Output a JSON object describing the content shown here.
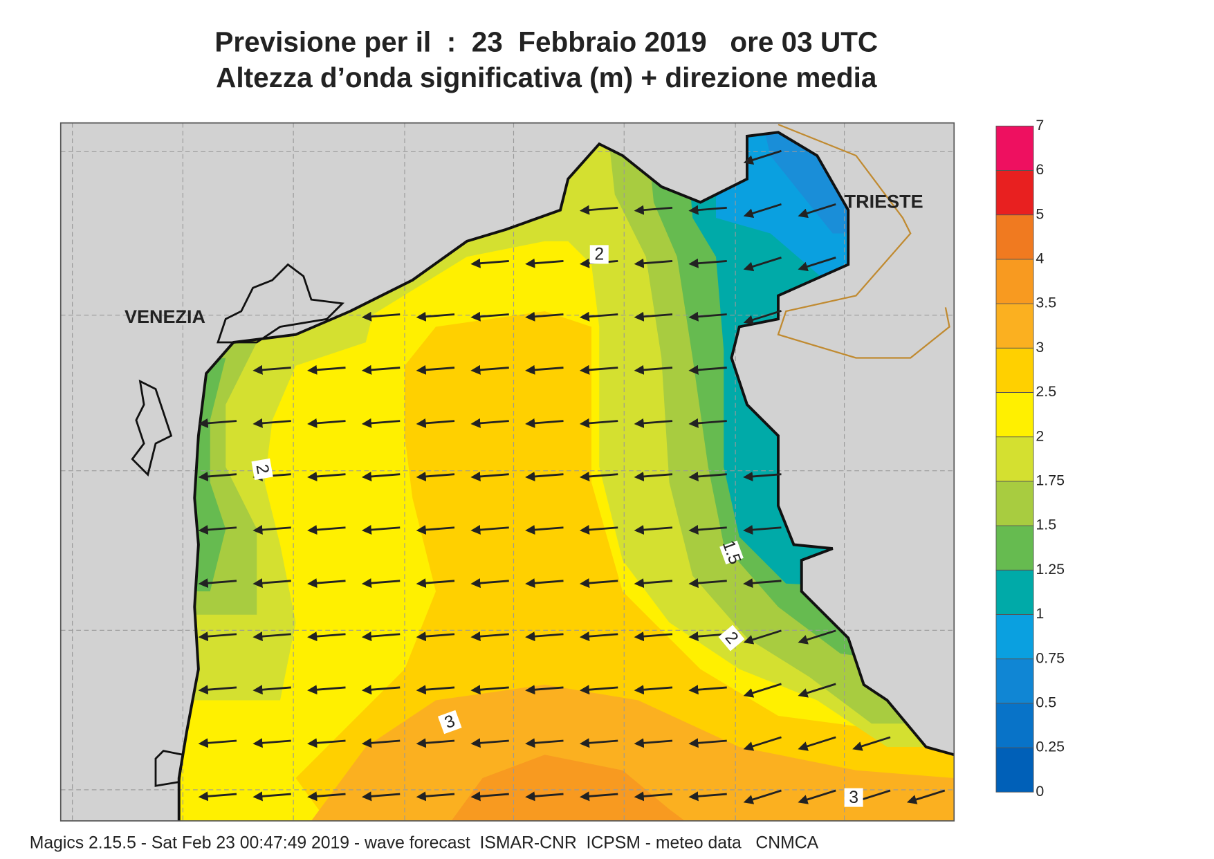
{
  "header": {
    "title": "Previsione per il  :  23  Febbraio 2019   ore 03 UTC",
    "subtitle": "Altezza d’onda significativa (m) + direzione media"
  },
  "map": {
    "places": [
      "VENEZIA",
      "TRIESTE"
    ],
    "contour_labels": [
      2,
      2,
      1.5,
      2,
      3,
      3
    ]
  },
  "colorbar": {
    "levels": [
      0,
      0.25,
      0.5,
      0.75,
      1,
      1.25,
      1.5,
      1.75,
      2,
      2.5,
      3,
      3.5,
      4,
      5,
      6,
      7
    ],
    "colors": [
      "#0060b8",
      "#0873c8",
      "#1086d4",
      "#0aa0e0",
      "#00aaa8",
      "#66bb50",
      "#a8cc40",
      "#d4e030",
      "#fff000",
      "#ffd000",
      "#fbb020",
      "#f89a20",
      "#f07a20",
      "#e82020",
      "#ee1060"
    ]
  },
  "footer": "Magics 2.15.5 - Sat Feb 23 00:47:49 2019 - wave forecast  ISMAR-CNR  ICPSM - meteo data   CNMCA"
}
